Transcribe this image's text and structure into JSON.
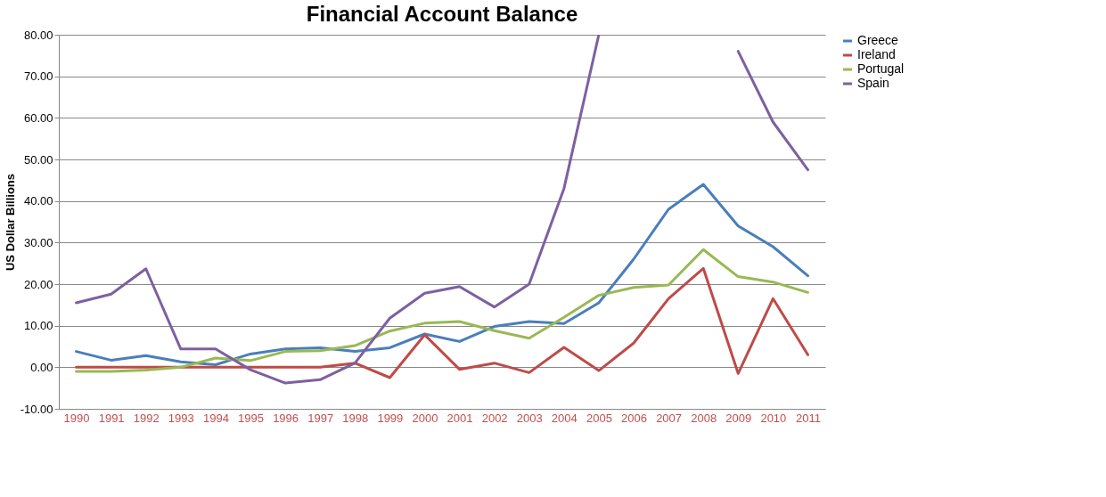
{
  "chart_data": {
    "type": "line",
    "title": "Financial Account Balance",
    "ylabel": "US Dollar Billions",
    "categories": [
      "1990",
      "1991",
      "1992",
      "1993",
      "1994",
      "1995",
      "1996",
      "1997",
      "1998",
      "1999",
      "2000",
      "2001",
      "2002",
      "2003",
      "2004",
      "2005",
      "2006",
      "2007",
      "2008",
      "2009",
      "2010",
      "2011"
    ],
    "series": [
      {
        "name": "Greece",
        "color": "#4a7ebb",
        "values": [
          3.8,
          1.7,
          2.8,
          1.3,
          0.6,
          3.2,
          4.4,
          4.7,
          3.8,
          4.7,
          8.0,
          6.2,
          9.8,
          11,
          10.5,
          15.5,
          26,
          38,
          44,
          34,
          29,
          22
        ]
      },
      {
        "name": "Ireland",
        "color": "#be4b48",
        "values": [
          0,
          0,
          0,
          0,
          0,
          0,
          0,
          0,
          1,
          -2.5,
          7.8,
          -0.5,
          1,
          -1.3,
          4.8,
          -0.8,
          5.8,
          16.5,
          23.8,
          -1.5,
          16.5,
          3
        ]
      },
      {
        "name": "Portugal",
        "color": "#98b954",
        "values": [
          -1,
          -1,
          -0.7,
          0,
          2.2,
          1.6,
          3.8,
          4,
          5.2,
          8.7,
          10.6,
          11,
          8.8,
          7,
          12,
          17.3,
          19.2,
          19.8,
          28.3,
          21.8,
          20.5,
          18
        ]
      },
      {
        "name": "Spain",
        "color": "#7d60a0",
        "values": [
          15.5,
          17.6,
          23.7,
          4.4,
          4.4,
          -0.6,
          -3.8,
          -3,
          1,
          11.8,
          17.8,
          19.4,
          14.5,
          20,
          43,
          80,
          null,
          null,
          null,
          76,
          59,
          47.5
        ]
      }
    ],
    "ylim": [
      -10,
      80
    ],
    "yticks": [
      {
        "value": -10,
        "label": "-10.00"
      },
      {
        "value": 0,
        "label": "0.00"
      },
      {
        "value": 10,
        "label": "10.00"
      },
      {
        "value": 20,
        "label": "20.00"
      },
      {
        "value": 30,
        "label": "30.00"
      },
      {
        "value": 40,
        "label": "40.00"
      },
      {
        "value": 50,
        "label": "50.00"
      },
      {
        "value": 60,
        "label": "60.00"
      },
      {
        "value": 70,
        "label": "70.00"
      },
      {
        "value": 80,
        "label": "80.00"
      }
    ],
    "grid": "y",
    "legend": "right",
    "marker": "none",
    "line_style": "solid"
  }
}
